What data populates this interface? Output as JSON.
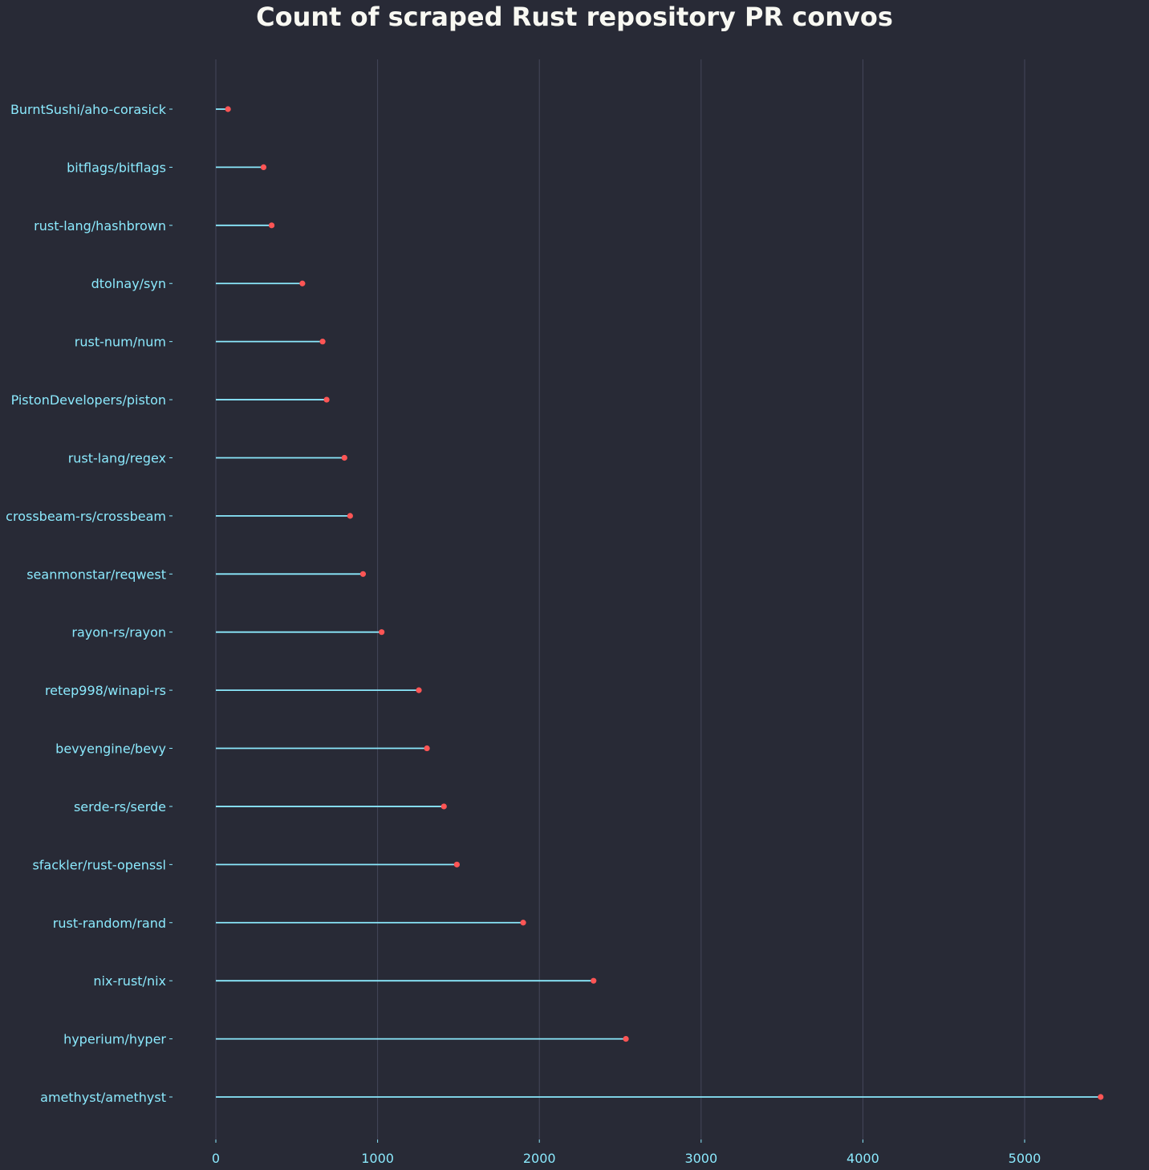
{
  "chart_data": {
    "type": "lollipop",
    "title": "Count of scraped Rust repository PR convos",
    "xlabel": "",
    "ylabel": "",
    "xlim": [
      0,
      5500
    ],
    "x_ticks": [
      0,
      1000,
      2000,
      3000,
      4000,
      5000
    ],
    "grid": "vertical",
    "orientation": "horizontal",
    "categories": [
      "BurntSushi/aho-corasick",
      "bitflags/bitflags",
      "rust-lang/hashbrown",
      "dtolnay/syn",
      "rust-num/num",
      "PistonDevelopers/piston",
      "rust-lang/regex",
      "crossbeam-rs/crossbeam",
      "seanmonstar/reqwest",
      "rayon-rs/rayon",
      "retep998/winapi-rs",
      "bevyengine/bevy",
      "serde-rs/serde",
      "sfackler/rust-openssl",
      "rust-random/rand",
      "nix-rust/nix",
      "hyperium/hyper",
      "amethyst/amethyst"
    ],
    "values": [
      75,
      295,
      345,
      535,
      660,
      685,
      795,
      830,
      910,
      1025,
      1255,
      1305,
      1410,
      1490,
      1900,
      2335,
      2535,
      5470
    ],
    "colors": {
      "background": "#282a36",
      "stem": "#8be9fd",
      "marker": "#ff5555",
      "text": "#8be9fd",
      "title": "#f8f8f2",
      "grid": "#44475a"
    }
  }
}
